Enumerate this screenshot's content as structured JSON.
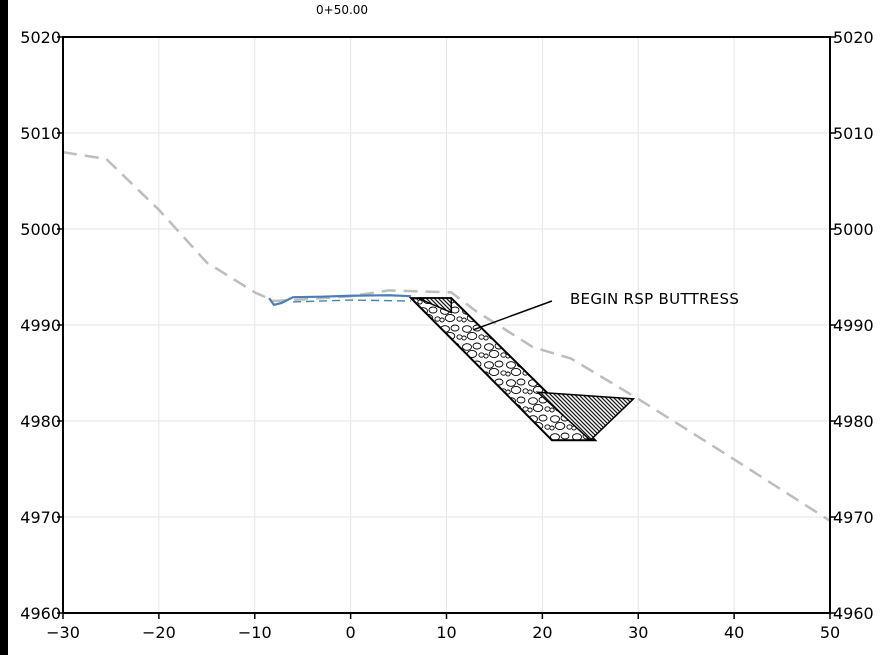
{
  "station_label": "0+50.00",
  "callout_text": "BEGIN RSP BUTTRESS",
  "colors": {
    "background": "#ffffff",
    "grid": "#e6e6e6",
    "frame": "#000000",
    "existing_ground": "#bdbdbd",
    "proposed_grade": "#4a7fb5",
    "riprap_fill": "#ffffff",
    "hatch_fill": "#1a1a1a",
    "left_bar": "#000000"
  },
  "chart_data": {
    "type": "line",
    "title": "0+50.00",
    "xlabel": "",
    "ylabel": "",
    "xlim": [
      -30,
      50
    ],
    "ylim": [
      4960,
      5020
    ],
    "grid": true,
    "x_ticks": [
      -30,
      -20,
      -10,
      0,
      10,
      20,
      30,
      40,
      50
    ],
    "x_tick_labels": [
      "−30",
      "−20",
      "−10",
      "0",
      "10",
      "20",
      "30",
      "40",
      "50"
    ],
    "y_ticks": [
      4960,
      4970,
      4980,
      4990,
      5000,
      5010,
      5020
    ],
    "y_tick_labels": [
      "4960",
      "4970",
      "4980",
      "4990",
      "5000",
      "5010",
      "5020"
    ],
    "series": [
      {
        "style": "dashed",
        "x": [
          -30,
          -25.5,
          -20,
          -15,
          -10,
          -8,
          -6,
          -3,
          0,
          4,
          10.5,
          13,
          19,
          23,
          30,
          40,
          50
        ],
        "y": [
          5008,
          5007.3,
          5002,
          4996.5,
          4993.4,
          4992.5,
          4992.6,
          4992.8,
          4993,
          4993.6,
          4993.4,
          4991.5,
          4987.7,
          4986.5,
          4982.3,
          4976,
          4969.6
        ]
      },
      {
        "style": "solid",
        "x": [
          -8.5,
          -8,
          -7.2,
          -6,
          -3,
          0,
          4,
          6.3
        ],
        "y": [
          4992.8,
          4992.1,
          4992.3,
          4992.9,
          4992.95,
          4993.05,
          4993.1,
          4993.0
        ]
      },
      {
        "style": "dashed",
        "x": [
          -6,
          0,
          6.3
        ],
        "y": [
          4992.4,
          4992.6,
          4992.5
        ]
      }
    ],
    "buttress": {
      "riprap_polygon_x": [
        6.3,
        10.5,
        25.5,
        21
      ],
      "riprap_polygon_y": [
        4992.8,
        4992.8,
        4978,
        4978
      ],
      "top_wedge_x": [
        7,
        10.5,
        10.5
      ],
      "top_wedge_y": [
        4992.8,
        4992.8,
        4991.3
      ],
      "toe_wedge_x": [
        19.5,
        29.5,
        25
      ],
      "toe_wedge_y": [
        4983,
        4982.3,
        4978
      ]
    },
    "annotation": {
      "text": "BEGIN RSP BUTTRESS",
      "point_x": 12.8,
      "point_y": 4989.5,
      "label_x": 21,
      "label_y": 4992.5
    }
  }
}
